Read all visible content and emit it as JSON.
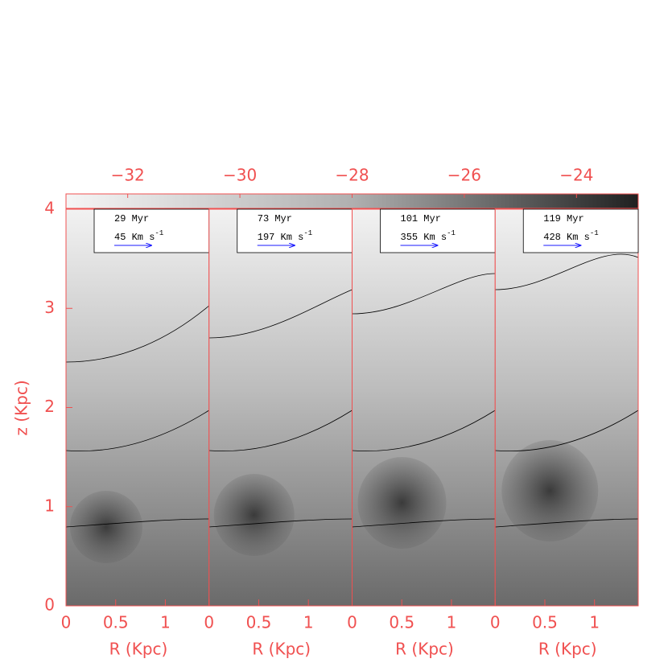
{
  "chart_data": {
    "type": "panels",
    "xlabel": "R (Kpc)",
    "ylabel": "z (Kpc)",
    "xlim": [
      0,
      1.44
    ],
    "xticks": [
      0,
      0.5,
      1
    ],
    "ylim": [
      0,
      4
    ],
    "yticks": [
      0,
      1,
      2,
      3,
      4
    ],
    "colorbar": {
      "lim": [
        -33.1,
        -22.9
      ],
      "ticks": [
        {
          "value": -32,
          "label": "−32"
        },
        {
          "value": -30,
          "label": "−30"
        },
        {
          "value": -28,
          "label": "−28"
        },
        {
          "value": -26,
          "label": "−26"
        },
        {
          "value": -24,
          "label": "−24"
        }
      ]
    },
    "axis_color": "#f05050",
    "arrow_color": "#1a1aff",
    "panels": [
      {
        "time": "29 Myr",
        "velocity": "45 Km s",
        "exponent": "-1"
      },
      {
        "time": "73 Myr",
        "velocity": "197 Km s",
        "exponent": "-1"
      },
      {
        "time": "101 Myr",
        "velocity": "355 Km s",
        "exponent": "-1"
      },
      {
        "time": "119 Myr",
        "velocity": "428 Km s",
        "exponent": "-1"
      }
    ]
  }
}
